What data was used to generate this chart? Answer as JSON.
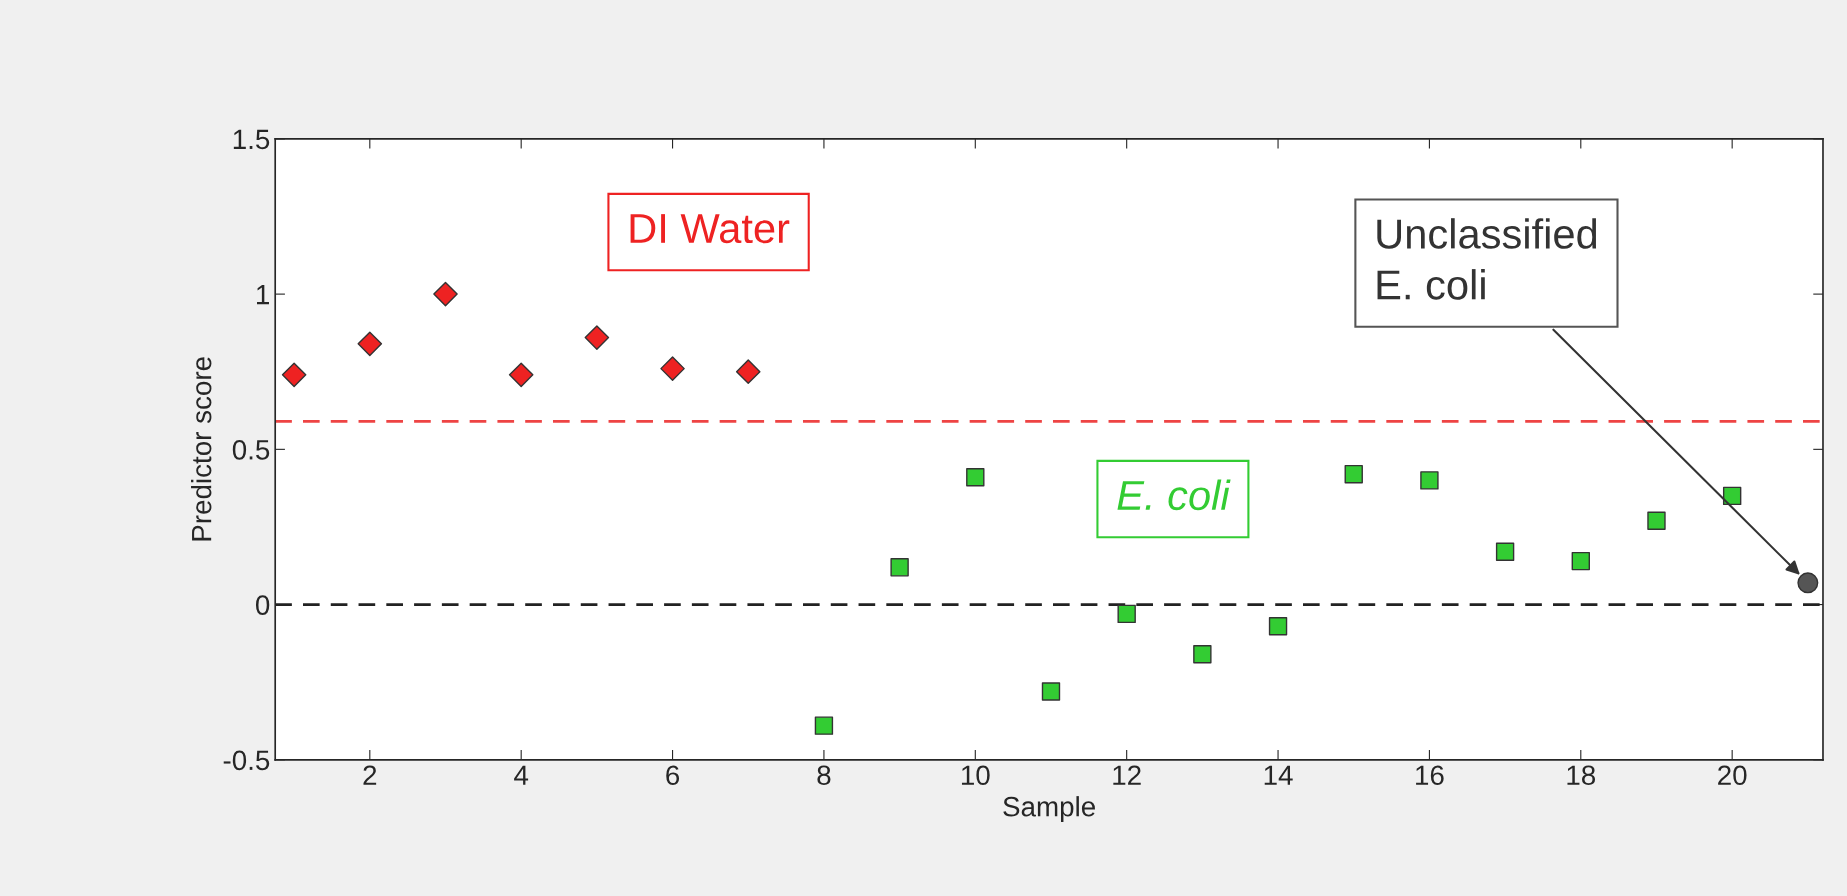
{
  "chart_data": {
    "type": "scatter",
    "xlabel": "Sample",
    "ylabel": "Predictor score",
    "xlim": [
      0.75,
      21.2
    ],
    "ylim": [
      -0.5,
      1.5
    ],
    "xticks": [
      2,
      4,
      6,
      8,
      10,
      12,
      14,
      16,
      18,
      20
    ],
    "yticks": [
      {
        "value": -0.5,
        "label": "-0.5"
      },
      0,
      0.5,
      1,
      1.5
    ],
    "grid": false,
    "legend": false,
    "series": [
      {
        "name": "DI Water",
        "color": "#ee2222",
        "marker": "diamond",
        "x": [
          1,
          2,
          3,
          4,
          5,
          6,
          7
        ],
        "values": [
          0.74,
          0.84,
          1.0,
          0.74,
          0.86,
          0.76,
          0.75
        ]
      },
      {
        "name": "E. coli",
        "color": "#33cc33",
        "marker": "square",
        "x": [
          8,
          9,
          10,
          11,
          12,
          13,
          14,
          15,
          16,
          17,
          18,
          19,
          20
        ],
        "values": [
          -0.39,
          0.12,
          0.41,
          -0.28,
          -0.03,
          -0.16,
          -0.07,
          0.42,
          0.4,
          0.17,
          0.14,
          0.27,
          0.35
        ]
      },
      {
        "name": "Unclassified\nE. coli",
        "color": "#555555",
        "marker": "circle",
        "x": [
          21
        ],
        "values": [
          0.07
        ]
      }
    ],
    "ref_lines": [
      {
        "axis": "y",
        "value": 0.59,
        "color": "#ee4444",
        "line_style": "dashed"
      },
      {
        "axis": "y",
        "value": 0,
        "color": "#222222",
        "line_style": "dashed"
      }
    ]
  }
}
